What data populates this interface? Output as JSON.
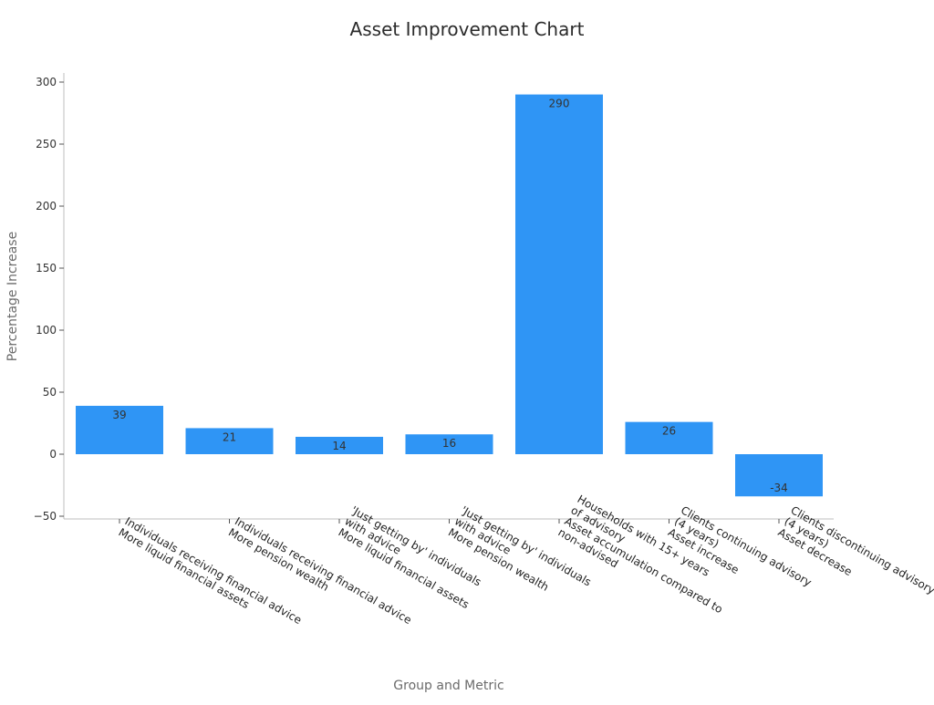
{
  "chart_data": {
    "type": "bar",
    "title": "Asset Improvement Chart",
    "xlabel": "Group and Metric",
    "ylabel": "Percentage Increase",
    "categories": [
      [
        "Individuals receiving financial advice",
        "More liquid financial assets"
      ],
      [
        "Individuals receiving financial advice",
        "More pension wealth"
      ],
      [
        "'Just getting by' individuals",
        "with advice",
        "More liquid financial assets"
      ],
      [
        "'Just getting by' individuals",
        "with advice",
        "More pension wealth"
      ],
      [
        "Households with 15+ years",
        "of advisory",
        "Asset accumulation compared to",
        "non-advised"
      ],
      [
        "Clients continuing advisory",
        "(4 years)",
        "Asset increase"
      ],
      [
        "Clients discontinuing advisory",
        "(4 years)",
        "Asset decrease"
      ]
    ],
    "values": [
      39,
      21,
      14,
      16,
      290,
      26,
      -34
    ],
    "data_labels": [
      "39",
      "21",
      "14",
      "16",
      "290",
      "26",
      "-34"
    ],
    "yticks": [
      -50,
      0,
      50,
      100,
      150,
      200,
      250,
      300
    ],
    "ytick_labels": [
      "−50",
      "0",
      "50",
      "100",
      "150",
      "200",
      "250",
      "300"
    ],
    "ylim": [
      -52,
      308
    ],
    "bar_color": "#2f95f5",
    "grid": false,
    "legend": "none"
  }
}
